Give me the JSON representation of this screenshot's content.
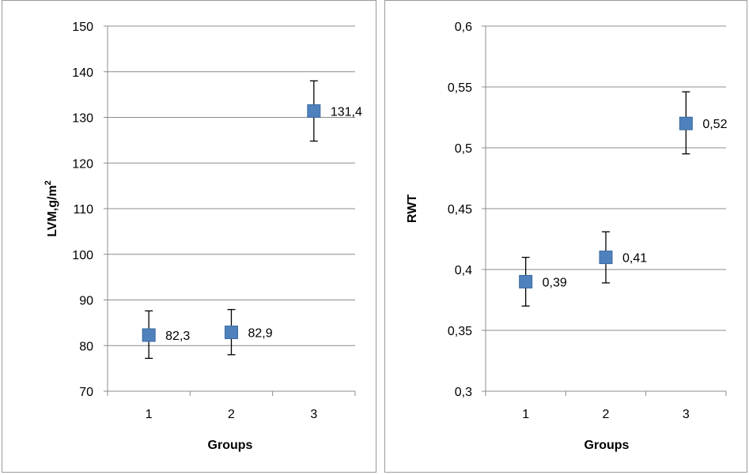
{
  "chart_data": [
    {
      "type": "scatter",
      "categories": [
        "1",
        "2",
        "3"
      ],
      "values": [
        82.3,
        82.9,
        131.4
      ],
      "error_low": [
        77.2,
        78.0,
        124.8
      ],
      "error_high": [
        87.6,
        87.9,
        138.0
      ],
      "data_labels": [
        "82,3",
        "82,9",
        "131,4"
      ],
      "ylim": [
        70,
        150
      ],
      "y_ticks": [
        "70",
        "80",
        "90",
        "100",
        "110",
        "120",
        "130",
        "140",
        "150"
      ],
      "y_tick_values": [
        70,
        80,
        90,
        100,
        110,
        120,
        130,
        140,
        150
      ],
      "xlabel": "Groups",
      "ylabel_main": "LVM,g/m",
      "ylabel_sup": "2",
      "grid": true,
      "marker_color": "#4f81bd"
    },
    {
      "type": "scatter",
      "categories": [
        "1",
        "2",
        "3"
      ],
      "values": [
        0.39,
        0.41,
        0.52
      ],
      "error_low": [
        0.37,
        0.389,
        0.495
      ],
      "error_high": [
        0.41,
        0.431,
        0.546
      ],
      "data_labels": [
        "0,39",
        "0,41",
        "0,52"
      ],
      "ylim": [
        0.3,
        0.6
      ],
      "y_ticks": [
        "0,3",
        "0,35",
        "0,4",
        "0,45",
        "0,5",
        "0,55",
        "0,6"
      ],
      "y_tick_values": [
        0.3,
        0.35,
        0.4,
        0.45,
        0.5,
        0.55,
        0.6
      ],
      "xlabel": "Groups",
      "ylabel_main": "RWT",
      "ylabel_sup": "",
      "grid": true,
      "marker_color": "#4f81bd"
    }
  ]
}
